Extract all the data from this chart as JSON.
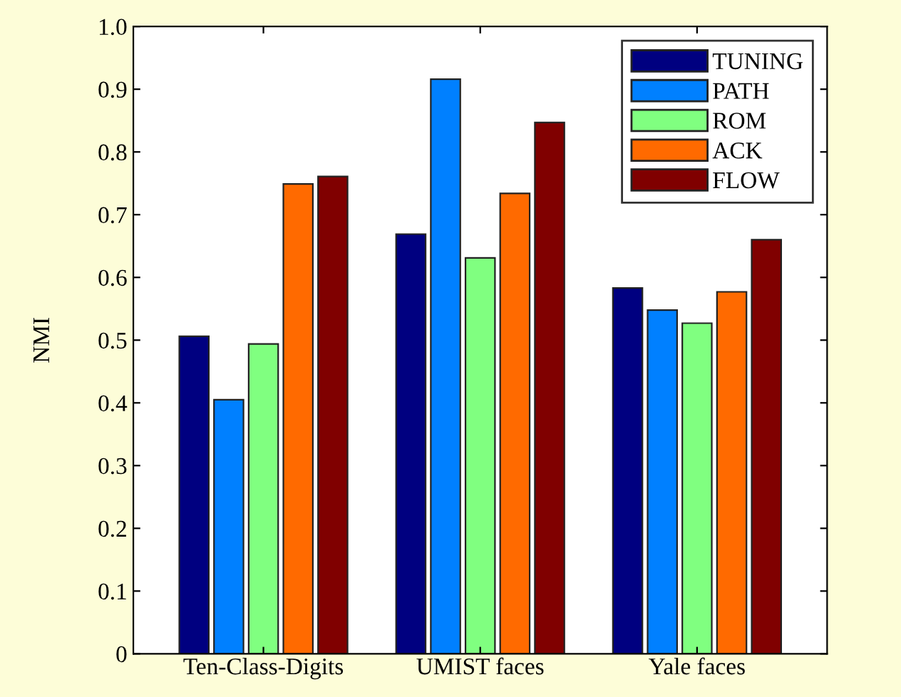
{
  "chart_data": {
    "type": "bar",
    "ylabel": "NMI",
    "categories": [
      "Ten-Class-Digits",
      "UMIST faces",
      "Yale faces"
    ],
    "series": [
      {
        "name": "TUNING",
        "color": "#000080",
        "values": [
          0.506,
          0.669,
          0.583
        ]
      },
      {
        "name": "PATH",
        "color": "#0080ff",
        "values": [
          0.405,
          0.916,
          0.548
        ]
      },
      {
        "name": "ROM",
        "color": "#80ff80",
        "values": [
          0.494,
          0.631,
          0.527
        ]
      },
      {
        "name": "ACK",
        "color": "#ff6a00",
        "values": [
          0.749,
          0.734,
          0.577
        ]
      },
      {
        "name": "FLOW",
        "color": "#800000",
        "values": [
          0.761,
          0.847,
          0.66
        ]
      }
    ],
    "ylim": [
      0,
      1.0
    ],
    "yticks": [
      {
        "value": 0,
        "label": "0"
      },
      0.1,
      0.2,
      0.3,
      0.4,
      0.5,
      0.6,
      0.7,
      0.8,
      0.9,
      {
        "value": 1.0,
        "label": "1.0"
      }
    ],
    "grid": false,
    "legend": "top right"
  }
}
